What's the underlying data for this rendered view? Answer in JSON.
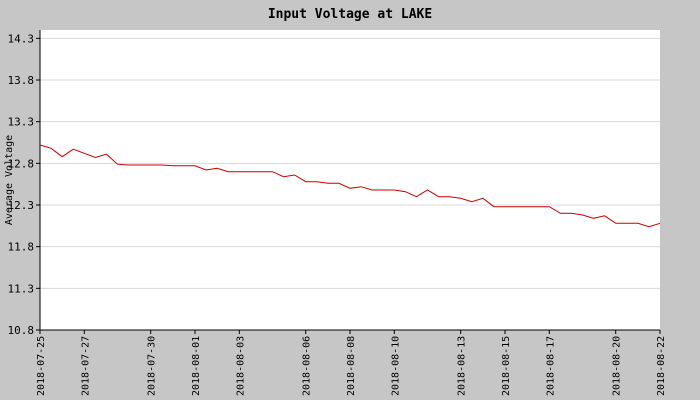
{
  "chart_data": {
    "type": "line",
    "title": "Input Voltage at LAKE",
    "xlabel": "",
    "ylabel": "Average Voltage",
    "x_ticks": [
      "2018-07-25",
      "2018-07-27",
      "2018-07-30",
      "2018-08-01",
      "2018-08-03",
      "2018-08-06",
      "2018-08-08",
      "2018-08-10",
      "2018-08-13",
      "2018-08-15",
      "2018-08-17",
      "2018-08-20",
      "2018-08-22"
    ],
    "y_ticks": [
      "14.3",
      "13.8",
      "13.3",
      "12.8",
      "12.3",
      "11.8",
      "11.3",
      "10.8"
    ],
    "ylim": [
      10.8,
      14.4
    ],
    "xlim": [
      "2018-07-25",
      "2018-08-22"
    ],
    "grid": true,
    "series": [
      {
        "name": "",
        "color": "#cc0000",
        "x": [
          "2018-07-25T00:00",
          "2018-07-25T12:00",
          "2018-07-26T00:00",
          "2018-07-26T12:00",
          "2018-07-27T00:00",
          "2018-07-27T12:00",
          "2018-07-28T00:00",
          "2018-07-28T12:00",
          "2018-07-29T00:00",
          "2018-07-29T12:00",
          "2018-07-30T00:00",
          "2018-07-30T12:00",
          "2018-07-31T00:00",
          "2018-07-31T12:00",
          "2018-08-01T00:00",
          "2018-08-01T12:00",
          "2018-08-02T00:00",
          "2018-08-02T12:00",
          "2018-08-03T00:00",
          "2018-08-03T12:00",
          "2018-08-04T00:00",
          "2018-08-04T12:00",
          "2018-08-05T00:00",
          "2018-08-05T12:00",
          "2018-08-06T00:00",
          "2018-08-06T12:00",
          "2018-08-07T00:00",
          "2018-08-07T12:00",
          "2018-08-08T00:00",
          "2018-08-08T12:00",
          "2018-08-09T00:00",
          "2018-08-09T12:00",
          "2018-08-10T00:00",
          "2018-08-10T12:00",
          "2018-08-11T00:00",
          "2018-08-11T12:00",
          "2018-08-12T00:00",
          "2018-08-12T12:00",
          "2018-08-13T00:00",
          "2018-08-13T12:00",
          "2018-08-14T00:00",
          "2018-08-14T12:00",
          "2018-08-15T00:00",
          "2018-08-15T12:00",
          "2018-08-16T00:00",
          "2018-08-16T12:00",
          "2018-08-17T00:00",
          "2018-08-17T12:00",
          "2018-08-18T00:00",
          "2018-08-18T12:00",
          "2018-08-19T00:00",
          "2018-08-19T12:00",
          "2018-08-20T00:00",
          "2018-08-20T12:00",
          "2018-08-21T00:00",
          "2018-08-21T12:00",
          "2018-08-22T00:00"
        ],
        "values": [
          13.02,
          12.98,
          12.88,
          12.97,
          12.92,
          12.87,
          12.91,
          12.79,
          12.78,
          12.78,
          12.78,
          12.78,
          12.77,
          12.77,
          12.77,
          12.72,
          12.74,
          12.7,
          12.7,
          12.7,
          12.7,
          12.7,
          12.64,
          12.66,
          12.58,
          12.58,
          12.56,
          12.56,
          12.5,
          12.52,
          12.48,
          12.48,
          12.48,
          12.46,
          12.4,
          12.48,
          12.4,
          12.4,
          12.38,
          12.34,
          12.38,
          12.28,
          12.28,
          12.28,
          12.28,
          12.28,
          12.28,
          12.2,
          12.2,
          12.18,
          12.14,
          12.17,
          12.08,
          12.08,
          12.08,
          12.04,
          12.08
        ]
      }
    ]
  }
}
